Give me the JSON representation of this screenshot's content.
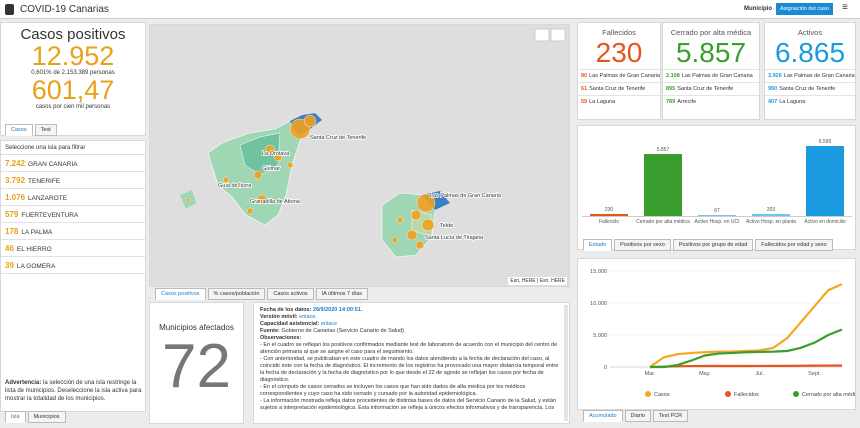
{
  "header": {
    "title": "COVID-19 Canarias",
    "filter_label": "Municipio",
    "button": "Asignación del caso"
  },
  "summary": {
    "title": "Casos positivos",
    "total": "12.952",
    "total_note": "0,601% de 2.153.389 personas",
    "rate": "601,47",
    "rate_note": "casos por cien mil personas",
    "tabs": [
      "Casos",
      "Test"
    ]
  },
  "islands": {
    "title": "Seleccione una isla para filtrar",
    "rows": [
      [
        "7.242",
        "GRAN CANARIA"
      ],
      [
        "3.792",
        "TENERIFE"
      ],
      [
        "1.076",
        "LANZAROTE"
      ],
      [
        "579",
        "FUERTEVENTURA"
      ],
      [
        "178",
        "LA PALMA"
      ],
      [
        "46",
        "EL HIERRO"
      ],
      [
        "39",
        "LA GOMERA"
      ]
    ],
    "warning_label": "Advertencia:",
    "warning": "la selección de una isla restringe la lista de municipios. Deseleccione la isla activa para mostrar la totalidad de los municipios.",
    "tabs": [
      "Isla",
      "Municipios"
    ]
  },
  "map": {
    "labels": [
      "Santa Cruz de Tenerife",
      "La Orotava",
      "Güimar",
      "Guía de Isora",
      "Granadilla de Abona",
      "Las Palmas de Gran Canaria",
      "Telde",
      "Santa Lucía de Tirajana"
    ],
    "attribution": "Esri, HERE | Esri, HERE",
    "tabs": [
      "Casos positivos",
      "% casos/población",
      "Casos activos",
      "IA últimos 7 días"
    ]
  },
  "municipalities": {
    "title": "Municipios afectados",
    "value": "72"
  },
  "notes": {
    "items": [
      {
        "label": "Fecha de los datos:",
        "value": "26/9/2020 14:00:51."
      },
      {
        "label": "Versión móvil:",
        "value": "enlace."
      },
      {
        "label": "Capacidad asistencial:",
        "value": "enlace"
      },
      {
        "label": "Fuente:",
        "value": "Gobierno de Canarias (Servicio Canario de Salud)"
      },
      {
        "label": "Observaciones:"
      }
    ],
    "bullets": [
      "- En el cuadro se reflejan los positivos confirmados mediante test de laboratorio de acuerdo con el municipio del centro de atención primaria al que se asigne el caso para el seguimiento.",
      "- Con anterioridad, se publicaban en este cuadro de mando los datos atendiendo a la fecha de declaración del caso, al coincidir éste con la fecha de diagnóstico. El incremento de los registros ha provocado una mayor distancia temporal entre la fecha de declaración y la fecha de diagnóstico por lo que desde el 22 de agosto se reflejan los casos por fecha de diagnóstico.",
      "- En el cómputo de casos cerrados se incluyen los casos que han sido dados de alta médica por los médicos correspondientes y cuyo caso ha sido cerrado y cursado por la autoridad epidemiológica.",
      "- La información mostrada refleja datos procedentes de distintas bases de datos del Servicio Canario de la Salud, y están sujetos a interpretación epidemiológica. Esta información se refleja a únicos efectos informativos y de transparencia. Los"
    ]
  },
  "cards": [
    {
      "title": "Fallecidos",
      "value": "230",
      "color": "#e8541e",
      "rows": [
        [
          "80",
          "Las Palmas de Gran Canaria"
        ],
        [
          "61",
          "Santa Cruz de Tenerife"
        ],
        [
          "59",
          "La Laguna"
        ]
      ]
    },
    {
      "title": "Cerrado por alta médica",
      "value": "5.857",
      "color": "#3a9e2e",
      "rows": [
        [
          "2.108",
          "Las Palmas de Gran Canaria"
        ],
        [
          "895",
          "Santa Cruz de Tenerife"
        ],
        [
          "789",
          "Arrecife"
        ]
      ]
    },
    {
      "title": "Activos",
      "value": "6.865",
      "color": "#1a9be0",
      "rows": [
        [
          "3.926",
          "Las Palmas de Gran Canaria"
        ],
        [
          "990",
          "Santa Cruz de Tenerife"
        ],
        [
          "407",
          "La Laguna"
        ]
      ]
    }
  ],
  "bar_tabs": [
    "Estado",
    "Positivos por sexo",
    "Positivos por grupo de edad",
    "Fallecidos por edad y sexo"
  ],
  "line_tabs": [
    "Acumulado",
    "Diario",
    "Test PCR"
  ],
  "chart_data": [
    {
      "type": "bar",
      "categories": [
        "Fallecido",
        "Cerrado por alta médica",
        "Activo Hosp. en UCI",
        "Activo Hosp. en planta",
        "Activo en domicilio"
      ],
      "values": [
        230,
        5857,
        67,
        203,
        6595
      ],
      "value_labels": [
        "230",
        "5.857",
        "67",
        "203",
        "6.595"
      ],
      "colors": [
        "#e8541e",
        "#3a9e2e",
        "#6cc8ea",
        "#6cc8ea",
        "#1a9be0"
      ]
    },
    {
      "type": "line",
      "categories": [
        "Mar.",
        null,
        null,
        null,
        "May.",
        null,
        null,
        null,
        "Jul.",
        null,
        null,
        null,
        "Sept.",
        null,
        null
      ],
      "ylim": [
        0,
        15000
      ],
      "yticks": [
        0,
        {
          "value": 5000,
          "label": "5.000"
        },
        {
          "value": 10000,
          "label": "10.000"
        },
        {
          "value": 15000,
          "label": "15.000"
        }
      ],
      "grid": true,
      "legend": "bottom",
      "series": [
        {
          "name": "Casos",
          "color": "#f5a623",
          "values": [
            0,
            1500,
            2000,
            2200,
            2300,
            2400,
            2400,
            2500,
            2600,
            3000,
            4500,
            7000,
            9500,
            12000,
            12952
          ]
        },
        {
          "name": "Fallecidos",
          "color": "#e8541e",
          "values": [
            0,
            50,
            120,
            150,
            160,
            160,
            160,
            160,
            165,
            170,
            175,
            190,
            210,
            225,
            230
          ]
        },
        {
          "name": "Cerrado por alta médica",
          "color": "#3a9e2e",
          "values": [
            0,
            0,
            300,
            1000,
            1800,
            2100,
            2200,
            2300,
            2350,
            2400,
            2500,
            3000,
            3800,
            5000,
            5857
          ]
        }
      ]
    }
  ]
}
